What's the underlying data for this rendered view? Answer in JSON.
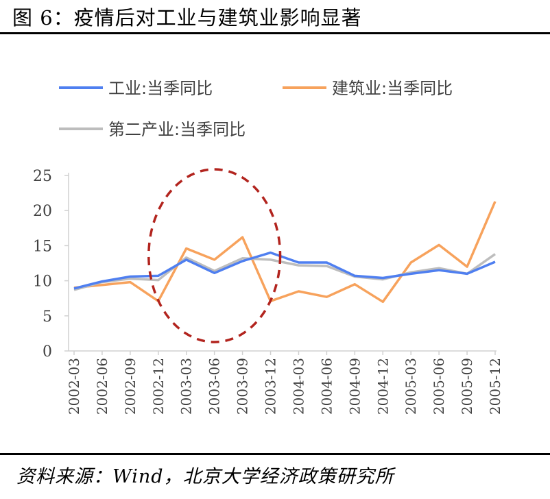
{
  "figure": {
    "title": "图 6：疫情后对工业与建筑业影响显著",
    "source": "资料来源：Wind，北京大学经济政策研究所"
  },
  "chart_data": {
    "type": "line",
    "categories": [
      "2002-03",
      "2002-06",
      "2002-09",
      "2002-12",
      "2003-03",
      "2003-06",
      "2003-09",
      "2003-12",
      "2004-03",
      "2004-06",
      "2004-09",
      "2004-12",
      "2005-03",
      "2005-06",
      "2005-09",
      "2005-12"
    ],
    "series": [
      {
        "name": "工业:当季同比",
        "color": "#4f7ff0",
        "values": [
          8.9,
          9.9,
          10.6,
          10.7,
          13.0,
          11.1,
          12.8,
          14.0,
          12.6,
          12.6,
          10.7,
          10.4,
          11.0,
          11.5,
          11.0,
          12.7
        ]
      },
      {
        "name": "建筑业:当季同比",
        "color": "#f7a25c",
        "values": [
          9.0,
          9.4,
          9.8,
          7.1,
          14.6,
          13.0,
          16.2,
          7.1,
          8.5,
          7.7,
          9.5,
          7.0,
          12.6,
          15.1,
          12.0,
          21.3
        ]
      },
      {
        "name": "第二产业:当季同比",
        "color": "#bdbdbd",
        "values": [
          8.7,
          9.8,
          10.3,
          10.1,
          13.3,
          11.4,
          13.2,
          13.0,
          12.2,
          12.1,
          10.6,
          10.2,
          11.2,
          11.8,
          11.0,
          13.8
        ]
      }
    ],
    "yticks": [
      0,
      5,
      10,
      15,
      20,
      25
    ],
    "ylim": [
      0,
      25
    ],
    "grid": false,
    "legend": "top",
    "annotation": {
      "shape": "ellipse",
      "style": "dashed",
      "color": "#b2241e",
      "covers": [
        "2002-12",
        "2003-12"
      ]
    }
  }
}
